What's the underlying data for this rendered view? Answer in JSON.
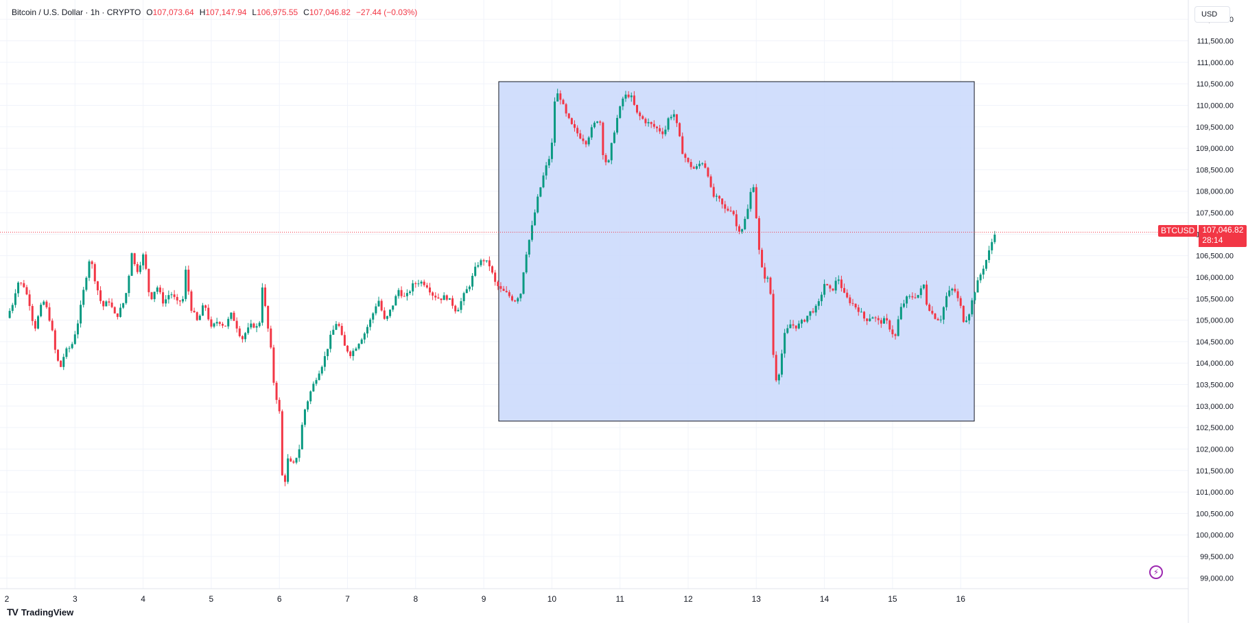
{
  "header": {
    "symbol": "Bitcoin / U.S. Dollar · 1h · CRYPTO",
    "open_label": "O",
    "open": "107,073.64",
    "high_label": "H",
    "high": "107,147.94",
    "low_label": "L",
    "low": "106,975.55",
    "close_label": "C",
    "close": "107,046.82",
    "change": "−27.44 (−0.03%)"
  },
  "currency": "USD",
  "price_tag": {
    "symbol": "BTCUSD",
    "price": "107,046.82",
    "countdown": "28:14"
  },
  "branding": {
    "name": "TradingView",
    "logo_text": "TV"
  },
  "colors": {
    "up": "#089981",
    "down": "#f23645",
    "box_fill": "#c9d8fb",
    "grid": "#f0f3fa"
  },
  "chart_data": {
    "type": "candlestick",
    "title": "Bitcoin / U.S. Dollar",
    "interval": "1h",
    "ylim": [
      98750,
      112450
    ],
    "y_ticks": [
      99000,
      99500,
      100000,
      100500,
      101000,
      101500,
      102000,
      102500,
      103000,
      103500,
      104000,
      104500,
      105000,
      105500,
      106000,
      106500,
      107000,
      107500,
      108000,
      108500,
      109000,
      109500,
      110000,
      110500,
      111000,
      111500,
      112000
    ],
    "y_tick_labels": [
      "99,000.00",
      "99,500.00",
      "100,000.00",
      "100,500.00",
      "101,000.00",
      "101,500.00",
      "102,000.00",
      "102,500.00",
      "103,000.00",
      "103,500.00",
      "104,000.00",
      "104,500.00",
      "105,000.00",
      "105,500.00",
      "106,000.00",
      "106,500.00",
      "107,000.00",
      "107,500.00",
      "108,000.00",
      "108,500.00",
      "109,000.00",
      "109,500.00",
      "110,000.00",
      "110,500.00",
      "111,000.00",
      "111,500.00",
      "112,000.00"
    ],
    "x_ticks": [
      2,
      3,
      4,
      5,
      6,
      7,
      8,
      9,
      10,
      11,
      12,
      13,
      14,
      15,
      16
    ],
    "x_tick_labels": [
      "2",
      "3",
      "4",
      "5",
      "6",
      "7",
      "8",
      "9",
      "10",
      "11",
      "12",
      "13",
      "14",
      "15",
      "16"
    ],
    "current_price": 107046.82,
    "highlight_box": {
      "x_start": 9.22,
      "x_end": 16.2,
      "y_low": 102650,
      "y_high": 110550
    },
    "price_path": [
      [
        2.0,
        105050
      ],
      [
        2.1,
        105450
      ],
      [
        2.15,
        105900
      ],
      [
        2.25,
        105800
      ],
      [
        2.35,
        105300
      ],
      [
        2.4,
        104750
      ],
      [
        2.5,
        105300
      ],
      [
        2.55,
        105450
      ],
      [
        2.65,
        104900
      ],
      [
        2.7,
        104350
      ],
      [
        2.78,
        103850
      ],
      [
        2.85,
        104250
      ],
      [
        2.95,
        104400
      ],
      [
        3.05,
        105000
      ],
      [
        3.15,
        105900
      ],
      [
        3.22,
        106500
      ],
      [
        3.3,
        105900
      ],
      [
        3.4,
        105300
      ],
      [
        3.5,
        105450
      ],
      [
        3.6,
        105050
      ],
      [
        3.7,
        105350
      ],
      [
        3.78,
        105800
      ],
      [
        3.82,
        106700
      ],
      [
        3.9,
        106100
      ],
      [
        4.0,
        106500
      ],
      [
        4.05,
        106100
      ],
      [
        4.1,
        105450
      ],
      [
        4.2,
        105800
      ],
      [
        4.3,
        105400
      ],
      [
        4.4,
        105650
      ],
      [
        4.5,
        105400
      ],
      [
        4.6,
        105500
      ],
      [
        4.62,
        106200
      ],
      [
        4.7,
        105300
      ],
      [
        4.8,
        104950
      ],
      [
        4.9,
        105400
      ],
      [
        5.0,
        104800
      ],
      [
        5.1,
        105000
      ],
      [
        5.2,
        104850
      ],
      [
        5.3,
        105150
      ],
      [
        5.35,
        104950
      ],
      [
        5.45,
        104550
      ],
      [
        5.5,
        104700
      ],
      [
        5.6,
        104900
      ],
      [
        5.7,
        104800
      ],
      [
        5.75,
        105800
      ],
      [
        5.82,
        104950
      ],
      [
        5.88,
        104250
      ],
      [
        5.92,
        103500
      ],
      [
        6.0,
        102850
      ],
      [
        6.03,
        101900
      ],
      [
        6.06,
        100550
      ],
      [
        6.1,
        101800
      ],
      [
        6.2,
        101600
      ],
      [
        6.3,
        102050
      ],
      [
        6.35,
        102800
      ],
      [
        6.45,
        103300
      ],
      [
        6.55,
        103700
      ],
      [
        6.65,
        104050
      ],
      [
        6.75,
        104600
      ],
      [
        6.85,
        105000
      ],
      [
        6.95,
        104400
      ],
      [
        7.05,
        104200
      ],
      [
        7.15,
        104450
      ],
      [
        7.25,
        104700
      ],
      [
        7.35,
        105050
      ],
      [
        7.45,
        105500
      ],
      [
        7.55,
        104950
      ],
      [
        7.65,
        105300
      ],
      [
        7.75,
        105700
      ],
      [
        7.85,
        105500
      ],
      [
        7.95,
        105800
      ],
      [
        8.05,
        105900
      ],
      [
        8.15,
        105850
      ],
      [
        8.25,
        105600
      ],
      [
        8.35,
        105500
      ],
      [
        8.45,
        105550
      ],
      [
        8.55,
        105350
      ],
      [
        8.6,
        105200
      ],
      [
        8.7,
        105550
      ],
      [
        8.8,
        105850
      ],
      [
        8.9,
        106300
      ],
      [
        9.0,
        106400
      ],
      [
        9.1,
        106250
      ],
      [
        9.15,
        105900
      ],
      [
        9.25,
        105700
      ],
      [
        9.35,
        105600
      ],
      [
        9.45,
        105450
      ],
      [
        9.55,
        105650
      ],
      [
        9.6,
        106400
      ],
      [
        9.7,
        107100
      ],
      [
        9.78,
        107750
      ],
      [
        9.85,
        108200
      ],
      [
        9.9,
        108500
      ],
      [
        9.95,
        108700
      ],
      [
        10.0,
        109100
      ],
      [
        10.05,
        110300
      ],
      [
        10.12,
        110200
      ],
      [
        10.2,
        109800
      ],
      [
        10.3,
        109500
      ],
      [
        10.4,
        109300
      ],
      [
        10.5,
        109150
      ],
      [
        10.6,
        109500
      ],
      [
        10.7,
        109750
      ],
      [
        10.75,
        108900
      ],
      [
        10.82,
        108550
      ],
      [
        10.9,
        109300
      ],
      [
        10.95,
        109650
      ],
      [
        11.05,
        110200
      ],
      [
        11.15,
        110250
      ],
      [
        11.25,
        109800
      ],
      [
        11.35,
        109650
      ],
      [
        11.45,
        109550
      ],
      [
        11.55,
        109450
      ],
      [
        11.65,
        109350
      ],
      [
        11.72,
        109750
      ],
      [
        11.8,
        109800
      ],
      [
        11.85,
        109400
      ],
      [
        11.92,
        108900
      ],
      [
        12.0,
        108650
      ],
      [
        12.1,
        108500
      ],
      [
        12.2,
        108700
      ],
      [
        12.28,
        108500
      ],
      [
        12.35,
        107900
      ],
      [
        12.45,
        107800
      ],
      [
        12.55,
        107550
      ],
      [
        12.65,
        107600
      ],
      [
        12.72,
        107100
      ],
      [
        12.8,
        107150
      ],
      [
        12.88,
        107600
      ],
      [
        12.95,
        108300
      ],
      [
        13.0,
        107400
      ],
      [
        13.05,
        106450
      ],
      [
        13.1,
        106050
      ],
      [
        13.2,
        105900
      ],
      [
        13.25,
        104200
      ],
      [
        13.28,
        103600
      ],
      [
        13.35,
        103850
      ],
      [
        13.4,
        104600
      ],
      [
        13.5,
        104900
      ],
      [
        13.6,
        104850
      ],
      [
        13.7,
        105000
      ],
      [
        13.8,
        105200
      ],
      [
        13.9,
        105300
      ],
      [
        14.0,
        105850
      ],
      [
        14.1,
        105650
      ],
      [
        14.2,
        106000
      ],
      [
        14.3,
        105550
      ],
      [
        14.4,
        105400
      ],
      [
        14.5,
        105250
      ],
      [
        14.6,
        105000
      ],
      [
        14.7,
        105100
      ],
      [
        14.8,
        104950
      ],
      [
        14.9,
        105000
      ],
      [
        15.0,
        104700
      ],
      [
        15.05,
        104600
      ],
      [
        15.1,
        105200
      ],
      [
        15.2,
        105500
      ],
      [
        15.3,
        105550
      ],
      [
        15.4,
        105600
      ],
      [
        15.45,
        105900
      ],
      [
        15.5,
        105400
      ],
      [
        15.6,
        105100
      ],
      [
        15.7,
        105000
      ],
      [
        15.8,
        105600
      ],
      [
        15.9,
        105750
      ],
      [
        16.0,
        105300
      ],
      [
        16.05,
        104950
      ],
      [
        16.12,
        105150
      ],
      [
        16.2,
        105650
      ],
      [
        16.3,
        106100
      ],
      [
        16.4,
        106500
      ],
      [
        16.5,
        107046.82
      ]
    ]
  }
}
